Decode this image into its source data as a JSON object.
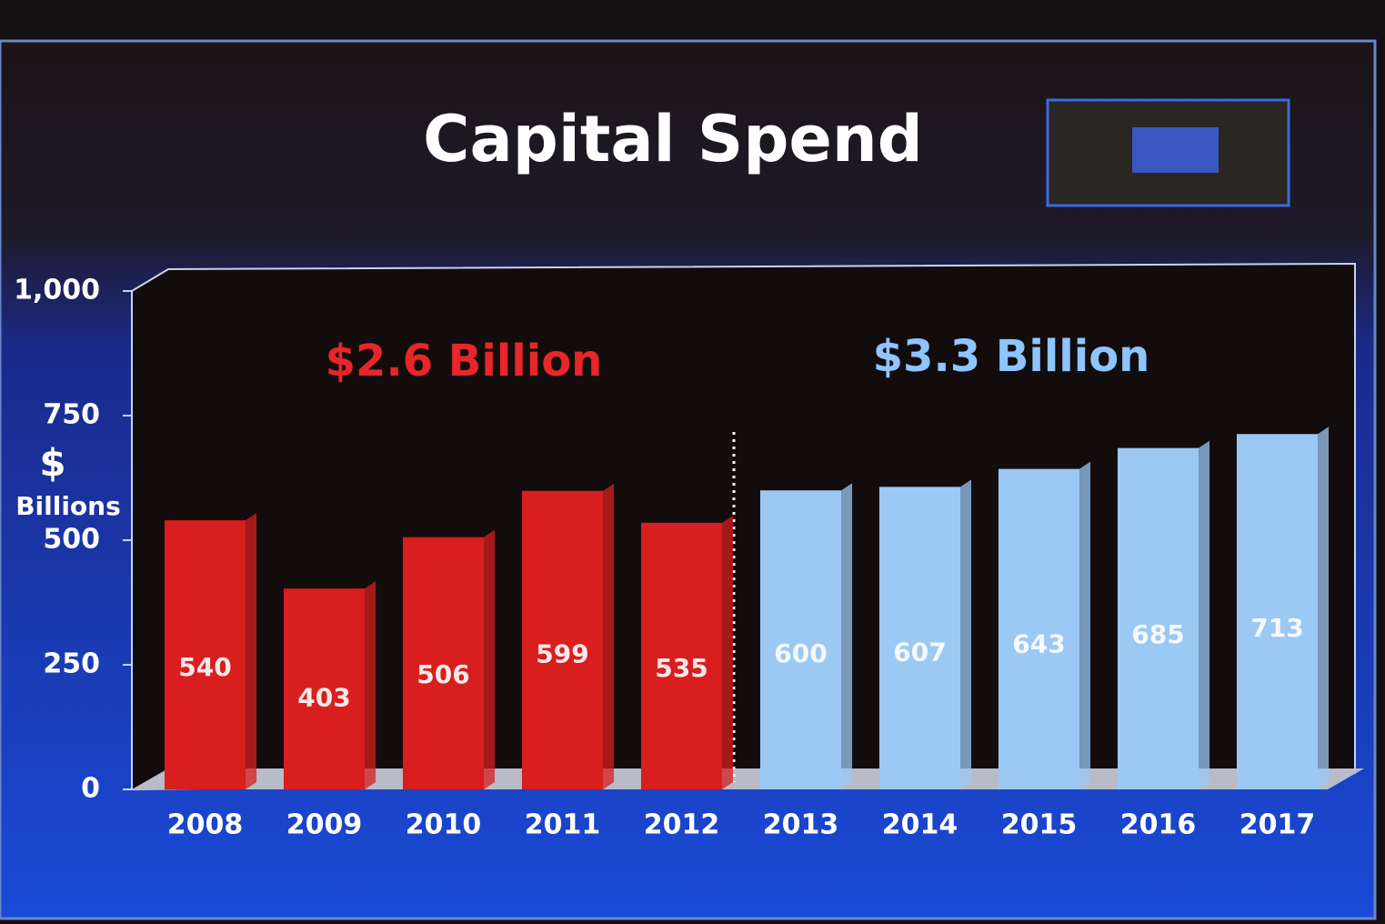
{
  "chart_data": {
    "type": "bar",
    "title": "Capital Spend",
    "ylabel": [
      "$",
      "Billions"
    ],
    "categories": [
      "2008",
      "2009",
      "2010",
      "2011",
      "2012",
      "2013",
      "2014",
      "2015",
      "2016",
      "2017"
    ],
    "values": [
      540,
      403,
      506,
      599,
      535,
      600,
      607,
      643,
      685,
      713
    ],
    "colors": [
      "#d81e1e",
      "#d81e1e",
      "#d81e1e",
      "#d81e1e",
      "#d81e1e",
      "#9cc8f4",
      "#9cc8f4",
      "#9cc8f4",
      "#9cc8f4",
      "#9cc8f4"
    ],
    "annotations": [
      {
        "text": "$2.6 Billion",
        "color": "#e8262a"
      },
      {
        "text": "$3.3 Billion",
        "color": "#8ec4ff"
      }
    ],
    "ylim": [
      0,
      1000
    ],
    "yticks": [
      0,
      250,
      500,
      750,
      {
        "value": 1000,
        "label": "1,000"
      }
    ],
    "grid": false
  }
}
